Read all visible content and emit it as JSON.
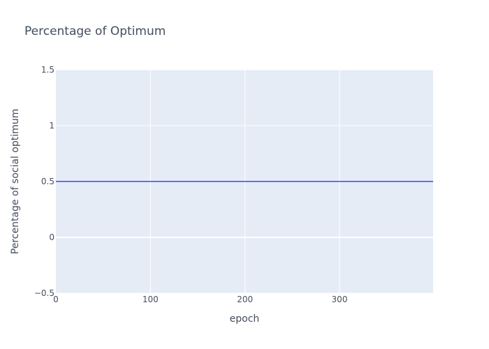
{
  "chart_data": {
    "type": "line",
    "title": "Percentage of Optimum",
    "xlabel": "epoch",
    "ylabel": "Percentage of social optimum",
    "xlim": [
      0,
      399
    ],
    "ylim": [
      -0.5,
      1.5
    ],
    "x_ticks": [
      0,
      100,
      200,
      300
    ],
    "x_tick_labels": [
      "0",
      "100",
      "200",
      "300"
    ],
    "y_ticks": [
      -0.5,
      0,
      0.5,
      1,
      1.5
    ],
    "y_tick_labels": [
      "−0.5",
      "0",
      "0.5",
      "1",
      "1.5"
    ],
    "grid": true,
    "plot_background": "#e5ecf6",
    "series": [
      {
        "color": "#636efa",
        "x": [
          0,
          399
        ],
        "y": [
          0.5,
          0.5
        ]
      }
    ]
  }
}
